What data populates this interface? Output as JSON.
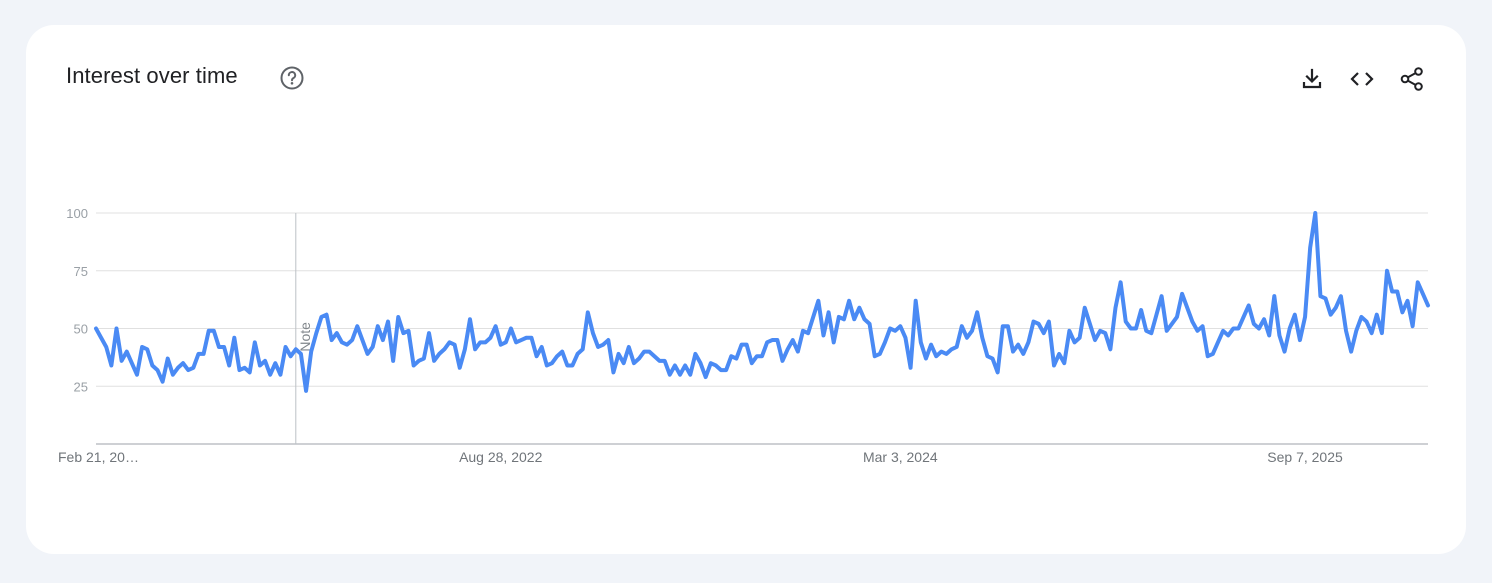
{
  "header": {
    "title": "Interest over time",
    "help_icon": "help-circle-icon",
    "actions": [
      {
        "name": "download-icon",
        "label": "Download CSV"
      },
      {
        "name": "embed-icon",
        "label": "Embed"
      },
      {
        "name": "share-icon",
        "label": "Share"
      }
    ]
  },
  "colors": {
    "line": "#4a8af4",
    "grid": "#e0e0e0",
    "axis": "#bdc1c6"
  },
  "chart_data": {
    "type": "line",
    "y_ticks": [
      "100",
      "75",
      "50",
      "25"
    ],
    "ylim": [
      0,
      100
    ],
    "x_tick_labels": [
      "Feb 21, 20…",
      "Aug 28, 2022",
      "Mar 3, 2024",
      "Sep 7, 2025"
    ],
    "x_tick_index": [
      0,
      79,
      157,
      236
    ],
    "note": {
      "label": "Note",
      "index": 39
    },
    "grid": true,
    "series": [
      {
        "values": [
          50,
          46,
          42,
          34,
          50,
          36,
          40,
          35,
          30,
          42,
          41,
          34,
          32,
          27,
          37,
          30,
          33,
          35,
          32,
          33,
          39,
          39,
          49,
          49,
          42,
          42,
          34,
          46,
          32,
          33,
          31,
          44,
          34,
          36,
          30,
          35,
          30,
          42,
          38,
          41,
          39,
          23,
          40,
          48,
          55,
          56,
          45,
          48,
          44,
          43,
          45,
          51,
          45,
          39,
          42,
          51,
          45,
          53,
          36,
          55,
          48,
          49,
          34,
          36,
          37,
          48,
          36,
          39,
          41,
          44,
          43,
          33,
          41,
          54,
          41,
          44,
          44,
          46,
          51,
          43,
          44,
          50,
          44,
          45,
          46,
          46,
          38,
          42,
          34,
          35,
          38,
          40,
          34,
          34,
          39,
          41,
          57,
          48,
          42,
          43,
          45,
          31,
          39,
          35,
          42,
          35,
          37,
          40,
          40,
          38,
          36,
          36,
          30,
          34,
          30,
          34,
          30,
          39,
          35,
          29,
          35,
          34,
          32,
          32,
          38,
          37,
          43,
          43,
          35,
          38,
          38,
          44,
          45,
          45,
          36,
          41,
          45,
          40,
          49,
          48,
          55,
          62,
          47,
          57,
          44,
          55,
          54,
          62,
          54,
          59,
          54,
          52,
          38,
          39,
          44,
          50,
          49,
          51,
          46,
          33,
          62,
          44,
          37,
          43,
          38,
          40,
          39,
          41,
          42,
          51,
          46,
          49,
          57,
          46,
          38,
          37,
          31,
          51,
          51,
          40,
          43,
          39,
          44,
          53,
          52,
          48,
          53,
          34,
          39,
          35,
          49,
          44,
          46,
          59,
          52,
          45,
          49,
          48,
          41,
          59,
          70,
          53,
          50,
          50,
          58,
          49,
          48,
          56,
          64,
          49,
          52,
          55,
          65,
          59,
          53,
          49,
          51,
          38,
          39,
          44,
          49,
          47,
          50,
          50,
          55,
          60,
          52,
          50,
          54,
          47,
          64,
          47,
          40,
          50,
          56,
          45,
          55,
          85,
          100,
          64,
          63,
          56,
          59,
          64,
          49,
          40,
          49,
          55,
          53,
          48,
          56,
          48,
          75,
          66,
          66,
          57,
          62,
          51,
          70,
          65,
          60
        ]
      }
    ]
  }
}
